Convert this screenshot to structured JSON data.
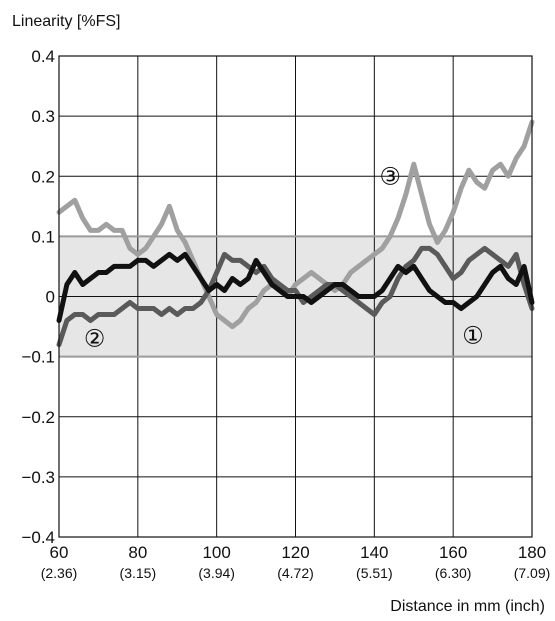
{
  "chart_data": {
    "type": "line",
    "ylabel": "Linearity [%FS]",
    "xlabel": "Distance in mm (inch)",
    "xlim": [
      60,
      180
    ],
    "ylim": [
      -0.4,
      0.4
    ],
    "grid": true,
    "tolerance_band": [
      -0.1,
      0.1
    ],
    "x_ticks": [
      {
        "value": 60,
        "label": "60",
        "sublabel": "(2.36)"
      },
      {
        "value": 80,
        "label": "80",
        "sublabel": "(3.15)"
      },
      {
        "value": 100,
        "label": "100",
        "sublabel": "(3.94)"
      },
      {
        "value": 120,
        "label": "120",
        "sublabel": "(4.72)"
      },
      {
        "value": 140,
        "label": "140",
        "sublabel": "(5.51)"
      },
      {
        "value": 160,
        "label": "160",
        "sublabel": "(6.30)"
      },
      {
        "value": 180,
        "label": "180",
        "sublabel": "(7.09)"
      }
    ],
    "y_ticks": [
      {
        "value": 0.4,
        "label": "0.4"
      },
      {
        "value": 0.3,
        "label": "0.3"
      },
      {
        "value": 0.2,
        "label": "0.2"
      },
      {
        "value": 0.1,
        "label": "0.1"
      },
      {
        "value": 0,
        "label": "0"
      },
      {
        "value": -0.1,
        "label": "−0.1"
      },
      {
        "value": -0.2,
        "label": "−0.2"
      },
      {
        "value": -0.3,
        "label": "−0.3"
      },
      {
        "value": -0.4,
        "label": "−0.4"
      }
    ],
    "series": [
      {
        "marker": "①",
        "color": "#111111",
        "marker_pos": {
          "x": 165,
          "y": -0.065
        },
        "x": [
          60,
          62,
          64,
          66,
          68,
          70,
          72,
          74,
          76,
          78,
          80,
          82,
          84,
          86,
          88,
          90,
          92,
          94,
          96,
          98,
          100,
          102,
          104,
          106,
          108,
          110,
          112,
          114,
          116,
          118,
          120,
          122,
          124,
          126,
          128,
          130,
          132,
          134,
          136,
          138,
          140,
          142,
          144,
          146,
          148,
          150,
          152,
          154,
          156,
          158,
          160,
          162,
          164,
          166,
          168,
          170,
          172,
          174,
          176,
          178,
          180
        ],
        "values": [
          -0.04,
          0.02,
          0.04,
          0.02,
          0.03,
          0.04,
          0.04,
          0.05,
          0.05,
          0.05,
          0.06,
          0.06,
          0.05,
          0.06,
          0.07,
          0.06,
          0.07,
          0.05,
          0.03,
          0.01,
          0.02,
          0.01,
          0.03,
          0.02,
          0.03,
          0.06,
          0.04,
          0.02,
          0.01,
          0,
          0,
          0,
          -0.01,
          0,
          0.01,
          0.02,
          0.02,
          0.01,
          0,
          0,
          0,
          0.01,
          0.03,
          0.05,
          0.04,
          0.05,
          0.03,
          0.01,
          0,
          -0.01,
          -0.01,
          -0.02,
          -0.01,
          0,
          0.02,
          0.04,
          0.05,
          0.03,
          0.02,
          0.05,
          -0.01
        ]
      },
      {
        "marker": "②",
        "color": "#5a5a5a",
        "marker_pos": {
          "x": 69,
          "y": -0.07
        },
        "x": [
          60,
          62,
          64,
          66,
          68,
          70,
          72,
          74,
          76,
          78,
          80,
          82,
          84,
          86,
          88,
          90,
          92,
          94,
          96,
          98,
          100,
          102,
          104,
          106,
          108,
          110,
          112,
          114,
          116,
          118,
          120,
          122,
          124,
          126,
          128,
          130,
          132,
          134,
          136,
          138,
          140,
          142,
          144,
          146,
          148,
          150,
          152,
          154,
          156,
          158,
          160,
          162,
          164,
          166,
          168,
          170,
          172,
          174,
          176,
          178,
          180
        ],
        "values": [
          -0.08,
          -0.04,
          -0.03,
          -0.03,
          -0.04,
          -0.03,
          -0.03,
          -0.03,
          -0.02,
          -0.01,
          -0.02,
          -0.02,
          -0.02,
          -0.03,
          -0.02,
          -0.03,
          -0.02,
          -0.02,
          -0.01,
          0.01,
          0.04,
          0.07,
          0.06,
          0.06,
          0.05,
          0.04,
          0.05,
          0.03,
          0.02,
          0.01,
          0.01,
          -0.01,
          0,
          0.01,
          0.02,
          0.02,
          0.01,
          0,
          -0.01,
          -0.02,
          -0.03,
          -0.01,
          0,
          0.03,
          0.05,
          0.06,
          0.08,
          0.08,
          0.07,
          0.05,
          0.03,
          0.04,
          0.06,
          0.07,
          0.08,
          0.07,
          0.06,
          0.05,
          0.07,
          0.02,
          -0.02
        ]
      },
      {
        "marker": "③",
        "color": "#a0a0a0",
        "marker_pos": {
          "x": 144,
          "y": 0.2
        },
        "x": [
          60,
          62,
          64,
          66,
          68,
          70,
          72,
          74,
          76,
          78,
          80,
          82,
          84,
          86,
          88,
          90,
          92,
          94,
          96,
          98,
          100,
          102,
          104,
          106,
          108,
          110,
          112,
          114,
          116,
          118,
          120,
          122,
          124,
          126,
          128,
          130,
          132,
          134,
          136,
          138,
          140,
          142,
          144,
          146,
          148,
          150,
          152,
          154,
          156,
          158,
          160,
          162,
          164,
          166,
          168,
          170,
          172,
          174,
          176,
          178,
          180
        ],
        "values": [
          0.14,
          0.15,
          0.16,
          0.13,
          0.11,
          0.11,
          0.12,
          0.11,
          0.11,
          0.08,
          0.07,
          0.08,
          0.1,
          0.12,
          0.15,
          0.11,
          0.09,
          0.06,
          0.03,
          0,
          -0.03,
          -0.04,
          -0.05,
          -0.04,
          -0.02,
          -0.01,
          0.01,
          0.02,
          0.01,
          0,
          0.02,
          0.03,
          0.04,
          0.03,
          0.02,
          0.01,
          0.02,
          0.04,
          0.05,
          0.06,
          0.07,
          0.08,
          0.1,
          0.13,
          0.17,
          0.22,
          0.17,
          0.12,
          0.09,
          0.11,
          0.14,
          0.18,
          0.21,
          0.19,
          0.18,
          0.21,
          0.22,
          0.2,
          0.23,
          0.25,
          0.29
        ]
      }
    ]
  }
}
